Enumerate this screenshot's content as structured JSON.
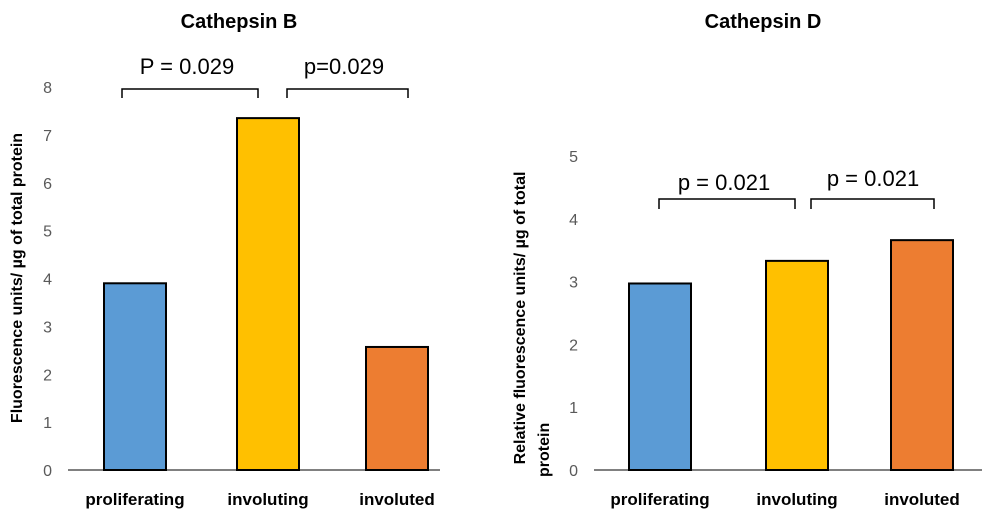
{
  "chart_data": [
    {
      "type": "bar",
      "title": "Cathepsin B",
      "ylabel": "Fluorescence units/ µg of total protein",
      "xlabel": "",
      "categories": [
        "proliferating",
        "involuting",
        "involuted"
      ],
      "values": [
        3.9,
        7.35,
        2.57
      ],
      "colors": [
        "#5b9bd5",
        "#ffc000",
        "#ed7d31"
      ],
      "ylim": [
        0,
        8
      ],
      "yticks": [
        "0",
        "1",
        "2",
        "3",
        "4",
        "5",
        "6",
        "7",
        "8"
      ],
      "annotations": [
        {
          "label": "P = 0.029",
          "from": "proliferating",
          "to": "involuting"
        },
        {
          "label": "p=0.029",
          "from": "involuting",
          "to": "involuted"
        }
      ]
    },
    {
      "type": "bar",
      "title": "Cathepsin D",
      "ylabel_lines": [
        "Relative fluorescence units/ µg of total",
        "protein"
      ],
      "xlabel": "",
      "categories": [
        "proliferating",
        "involuting",
        "involuted"
      ],
      "values": [
        2.97,
        3.33,
        3.66
      ],
      "colors": [
        "#5b9bd5",
        "#ffc000",
        "#ed7d31"
      ],
      "ylim": [
        0,
        5
      ],
      "yticks": [
        "0",
        "1",
        "2",
        "3",
        "4",
        "5"
      ],
      "annotations": [
        {
          "label": "p = 0.021",
          "from": "proliferating",
          "to": "involuting"
        },
        {
          "label": "p = 0.021",
          "from": "involuting",
          "to": "involuted"
        }
      ]
    }
  ]
}
